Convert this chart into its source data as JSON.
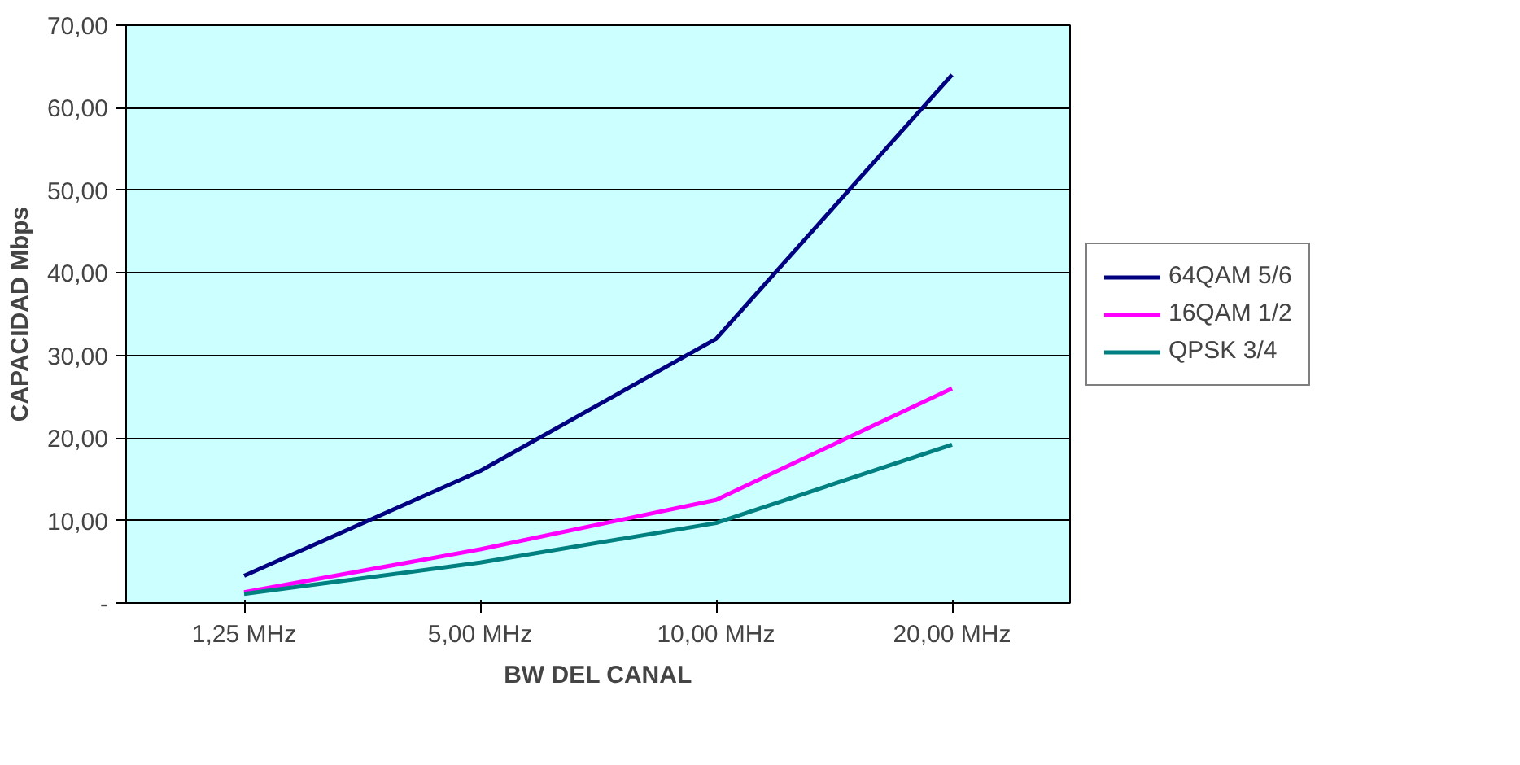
{
  "chart_data": {
    "type": "line",
    "xlabel": "BW DEL CANAL",
    "ylabel": "CAPACIDAD Mbps",
    "categories": [
      "1,25 MHz",
      "5,00 MHz",
      "10,00 MHz",
      "20,00 MHz"
    ],
    "series": [
      {
        "name": "64QAM 5/6",
        "color": "#000080",
        "values": [
          3.3,
          16,
          32,
          64
        ]
      },
      {
        "name": "16QAM 1/2",
        "color": "#ff00ff",
        "values": [
          1.3,
          6.5,
          12.5,
          26
        ]
      },
      {
        "name": "QPSK 3/4",
        "color": "#008080",
        "values": [
          1.1,
          4.9,
          9.7,
          19.2
        ]
      }
    ],
    "ylim": [
      0,
      70
    ],
    "yticks": [
      {
        "value": 0,
        "label": "-"
      },
      {
        "value": 10,
        "label": "10,00"
      },
      {
        "value": 20,
        "label": "20,00"
      },
      {
        "value": 30,
        "label": "30,00"
      },
      {
        "value": 40,
        "label": "40,00"
      },
      {
        "value": 50,
        "label": "50,00"
      },
      {
        "value": 60,
        "label": "60,00"
      },
      {
        "value": 70,
        "label": "70,00"
      }
    ],
    "grid": "y",
    "legend": "right",
    "marker": "none",
    "line_style": "solid"
  }
}
